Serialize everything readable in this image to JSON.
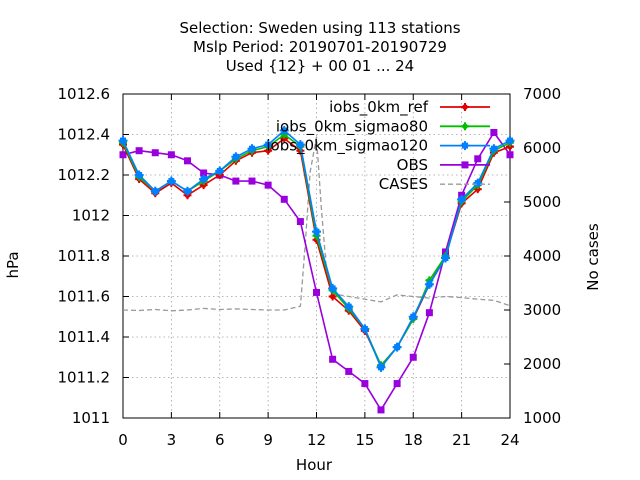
{
  "chart_data": {
    "type": "line",
    "title_lines": [
      "Selection: Sweden using   113 stations",
      "Mslp   Period: 20190701-20190729",
      "Used {12} + 00 01 ... 24"
    ],
    "xlabel": "Hour",
    "ylabel": "hPa",
    "y2label": "No cases",
    "xlim": [
      0,
      24
    ],
    "ylim": [
      1011,
      1012.6
    ],
    "y2lim": [
      1000,
      7000
    ],
    "x_ticks": [
      0,
      3,
      6,
      9,
      12,
      15,
      18,
      21,
      24
    ],
    "y_ticks": [
      1011,
      1011.2,
      1011.4,
      1011.6,
      1011.8,
      1012,
      1012.2,
      1012.4,
      1012.6
    ],
    "y_tick_labels": [
      "1011",
      "1011.2",
      "1011.4",
      "1011.6",
      "1011.8",
      "1012",
      "1012.2",
      "1012.4",
      "1012.6"
    ],
    "y2_ticks": [
      1000,
      2000,
      3000,
      4000,
      5000,
      6000,
      7000
    ],
    "grid": true,
    "legend_position": "top-right",
    "x": [
      0,
      1,
      2,
      3,
      4,
      5,
      6,
      7,
      8,
      9,
      10,
      11,
      12,
      13,
      14,
      15,
      16,
      17,
      18,
      19,
      20,
      21,
      22,
      23,
      24
    ],
    "series": [
      {
        "name": "iobs_0km_ref",
        "color": "#e00000",
        "axis": "y",
        "values": [
          1012.35,
          1012.18,
          1012.11,
          1012.16,
          1012.1,
          1012.15,
          1012.2,
          1012.27,
          1012.31,
          1012.32,
          1012.38,
          1012.32,
          1011.88,
          1011.6,
          1011.53,
          1011.43,
          1011.26,
          1011.35,
          1011.49,
          1011.66,
          1011.8,
          1012.06,
          1012.13,
          1012.31,
          1012.34
        ]
      },
      {
        "name": "iobs_0km_sigmao80",
        "color": "#00c000",
        "axis": "y",
        "values": [
          1012.36,
          1012.19,
          1012.12,
          1012.17,
          1012.12,
          1012.17,
          1012.22,
          1012.28,
          1012.32,
          1012.34,
          1012.4,
          1012.34,
          1011.9,
          1011.63,
          1011.54,
          1011.44,
          1011.26,
          1011.35,
          1011.49,
          1011.68,
          1011.8,
          1012.07,
          1012.15,
          1012.32,
          1012.36
        ]
      },
      {
        "name": "iobs_0km_sigmao120",
        "color": "#0080ff",
        "axis": "y",
        "values": [
          1012.37,
          1012.2,
          1012.12,
          1012.17,
          1012.12,
          1012.18,
          1012.22,
          1012.29,
          1012.33,
          1012.35,
          1012.42,
          1012.35,
          1011.92,
          1011.64,
          1011.55,
          1011.44,
          1011.25,
          1011.35,
          1011.5,
          1011.66,
          1011.79,
          1012.08,
          1012.16,
          1012.33,
          1012.37
        ]
      },
      {
        "name": "OBS",
        "color": "#9900dd",
        "axis": "y",
        "values": [
          1012.3,
          1012.32,
          1012.31,
          1012.3,
          1012.27,
          1012.21,
          1012.2,
          1012.17,
          1012.17,
          1012.15,
          1012.08,
          1011.97,
          1011.62,
          1011.29,
          1011.23,
          1011.17,
          1011.04,
          1011.17,
          1011.3,
          1011.52,
          1011.82,
          1012.1,
          1012.28,
          1012.41,
          1012.3
        ]
      },
      {
        "name": "CASES",
        "color": "#999999",
        "axis": "y2",
        "dashed": true,
        "x": [
          0,
          1,
          2,
          3,
          4,
          5,
          6,
          7,
          8,
          9,
          10,
          11,
          11.3,
          11.6,
          12,
          12.3,
          12.6,
          13,
          14,
          15,
          16,
          17,
          18,
          19,
          20,
          21,
          22,
          23,
          24
        ],
        "values": [
          3000,
          2990,
          3010,
          2985,
          3000,
          3030,
          3010,
          3020,
          3010,
          3000,
          3000,
          3070,
          4200,
          5550,
          6200,
          4900,
          3800,
          3300,
          3250,
          3200,
          3150,
          3280,
          3250,
          3220,
          3250,
          3230,
          3200,
          3180,
          3080
        ]
      }
    ]
  }
}
